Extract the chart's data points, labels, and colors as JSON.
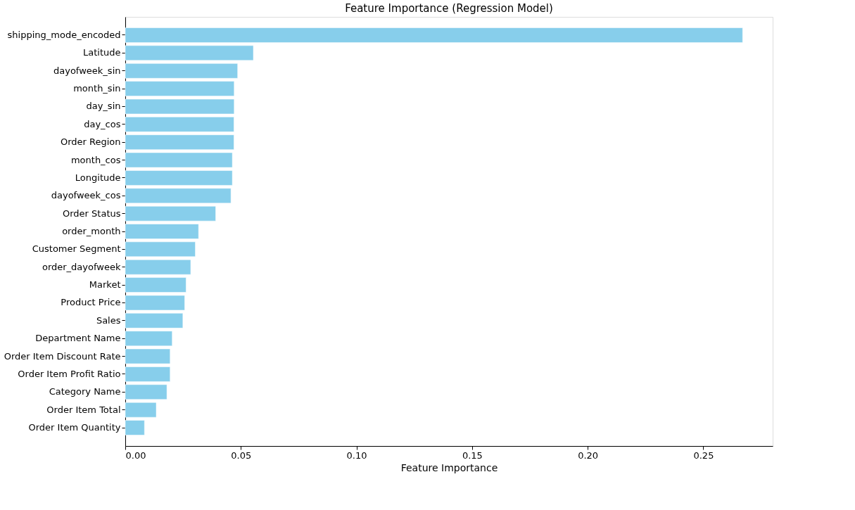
{
  "chart_data": {
    "type": "bar",
    "orientation": "horizontal",
    "title": "Feature Importance (Regression Model)",
    "xlabel": "Feature Importance",
    "categories": [
      "shipping_mode_encoded",
      "Latitude",
      "dayofweek_sin",
      "month_sin",
      "day_sin",
      "day_cos",
      "Order Region",
      "month_cos",
      "Longitude",
      "dayofweek_cos",
      "Order Status",
      "order_month",
      "Customer Segment",
      "order_dayofweek",
      "Market",
      "Product Price",
      "Sales",
      "Department Name",
      "Order Item Discount Rate",
      "Order Item Profit Ratio",
      "Category Name",
      "Order Item Total",
      "Order Item Quantity"
    ],
    "values": [
      0.267,
      0.0554,
      0.0486,
      0.0471,
      0.0471,
      0.047,
      0.047,
      0.0463,
      0.0463,
      0.0457,
      0.0391,
      0.0317,
      0.0303,
      0.0283,
      0.0263,
      0.0257,
      0.0249,
      0.0203,
      0.0194,
      0.0194,
      0.018,
      0.0134,
      0.0083
    ],
    "color": "#87ceeb",
    "xlim": [
      0,
      0.28
    ],
    "xticks": [
      {
        "value": 0,
        "label": "0.00"
      },
      0.05,
      {
        "value": 0.1,
        "label": "0.10"
      },
      0.15,
      {
        "value": 0.2,
        "label": "0.20"
      },
      0.25
    ],
    "grid": false
  }
}
